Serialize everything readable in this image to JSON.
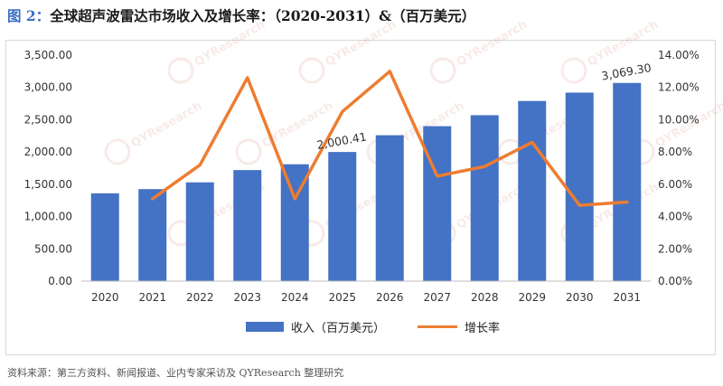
{
  "header": {
    "figure_label": "图 2：",
    "title": "全球超声波雷达市场收入及增长率：（2020-2031）&（百万美元）"
  },
  "footer": {
    "source": "资料来源：第三方资料、新闻报道、业内专家采访及 QYResearch 整理研究"
  },
  "chart_data": {
    "type": "bar",
    "title": "全球超声波雷达市场收入及增长率：（2020-2031）&（百万美元）",
    "categories": [
      "2020",
      "2021",
      "2022",
      "2023",
      "2024",
      "2025",
      "2026",
      "2027",
      "2028",
      "2029",
      "2030",
      "2031"
    ],
    "series": [
      {
        "name": "收入（百万美元）",
        "type": "bar",
        "axis": "left",
        "color": "#4472c4",
        "values": [
          1360,
          1425,
          1530,
          1720,
          1810,
          2000.41,
          2260,
          2400,
          2570,
          2790,
          2920,
          3069.3
        ]
      },
      {
        "name": "增长率",
        "type": "line",
        "axis": "right",
        "color": "#ed7d31",
        "values": [
          null,
          5.1,
          7.2,
          12.6,
          5.1,
          10.5,
          13.0,
          6.5,
          7.1,
          8.6,
          4.7,
          4.9
        ]
      }
    ],
    "left_axis": {
      "ylim": [
        0,
        3500
      ],
      "ticks": [
        "0.00",
        "500.00",
        "1,000.00",
        "1,500.00",
        "2,000.00",
        "2,500.00",
        "3,000.00",
        "3,500.00"
      ]
    },
    "right_axis": {
      "ylim": [
        0,
        14
      ],
      "ticks": [
        "0.00%",
        "2.00%",
        "4.00%",
        "6.00%",
        "8.00%",
        "10.00%",
        "12.00%",
        "14.00%"
      ]
    },
    "annotations": [
      {
        "index": 5,
        "text": "2,000.41"
      },
      {
        "index": 11,
        "text": "3,069.30"
      }
    ],
    "legend": {
      "position": "bottom",
      "labels": [
        "收入（百万美元）",
        "增长率"
      ]
    },
    "watermark": "QYResearch"
  }
}
